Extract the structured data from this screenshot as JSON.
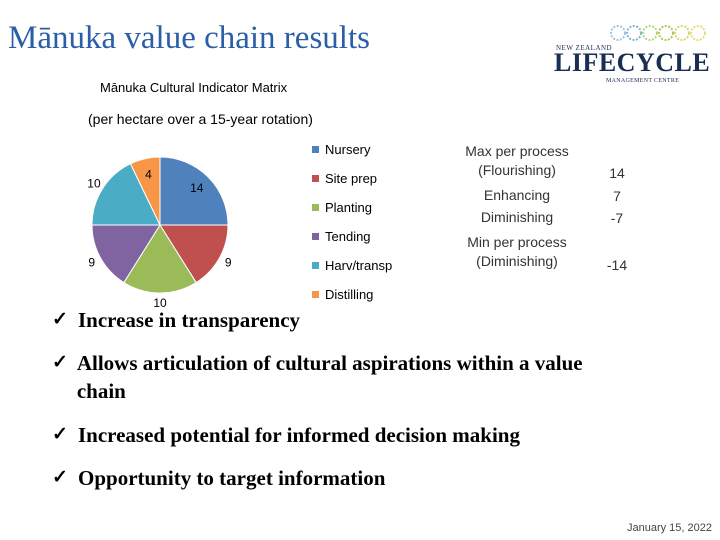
{
  "slide": {
    "title": "Mānuka value chain results",
    "logo": {
      "small_text": "NEW ZEALAND",
      "main_text": "LIFECYCLE",
      "sub_text": "MANAGEMENT CENTRE"
    },
    "matrix_title": "Mānuka Cultural Indicator Matrix",
    "matrix_subtitle": "(per hectare over a 15-year rotation)",
    "table": {
      "max_label": "Max per process\n(Flourishing)",
      "max_value": "14",
      "enhancing_label": "Enhancing",
      "enhancing_value": "7",
      "diminishing_label": "Diminishing",
      "diminishing_value": "-7",
      "min_label": "Min per process\n(Diminishing)",
      "min_value": "-14"
    },
    "bullets": [
      "Increase in transparency",
      "Allows articulation of cultural aspirations within a value chain",
      "Increased potential for informed decision making",
      "Opportunity to target information"
    ],
    "date": "January 15, 2022"
  },
  "chart_data": {
    "type": "pie",
    "categories": [
      "Nursery",
      "Site prep",
      "Planting",
      "Tending",
      "Harv/transp",
      "Distilling"
    ],
    "values": [
      14,
      9,
      10,
      9,
      10,
      4
    ],
    "colors": [
      "#4f81bd",
      "#c0504d",
      "#9bbb59",
      "#8064a2",
      "#4bacc6",
      "#f79646"
    ],
    "legend_position": "right",
    "data_labels": true
  }
}
